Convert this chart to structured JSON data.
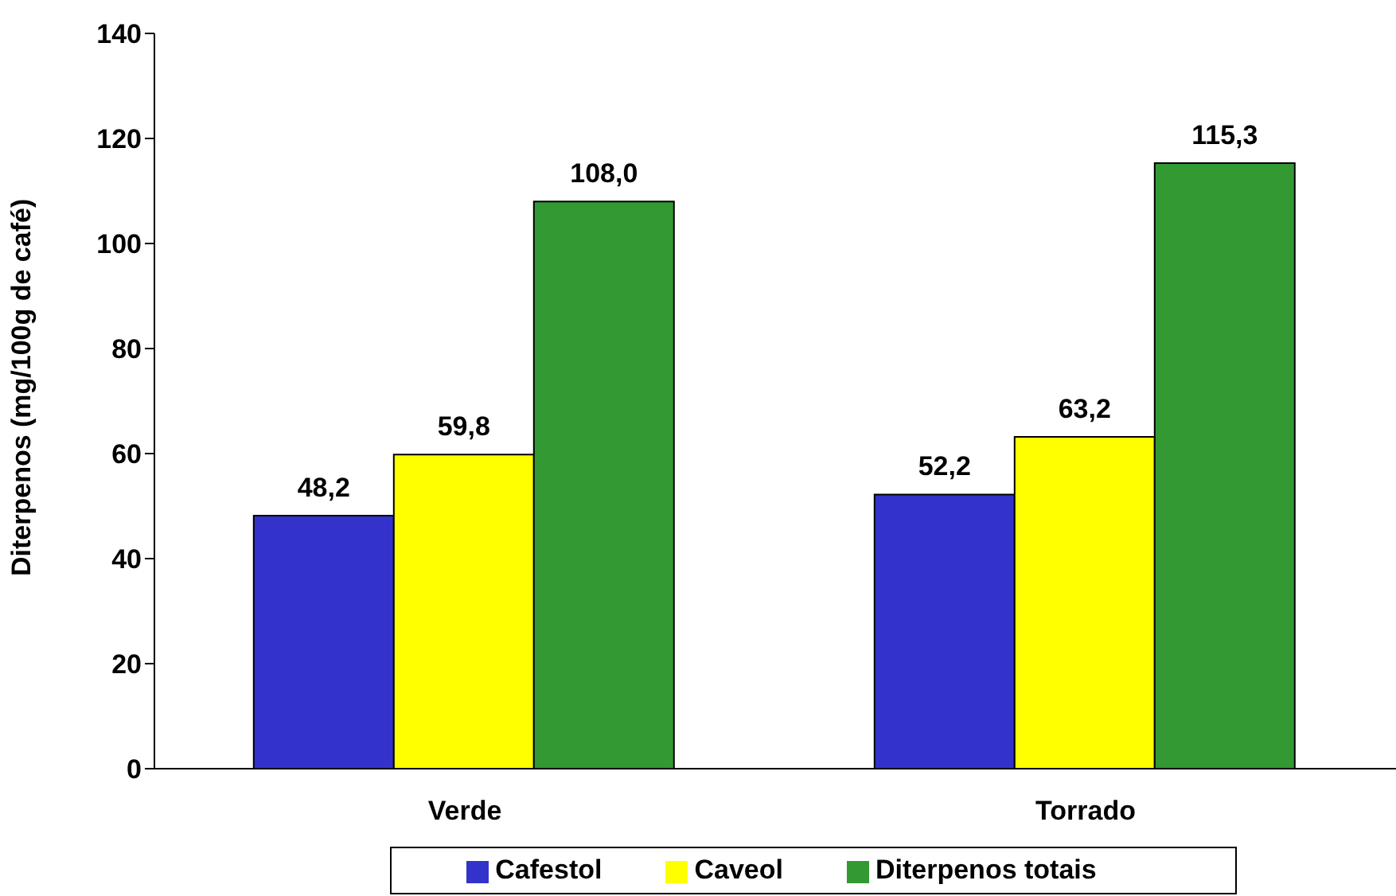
{
  "chart_data": {
    "type": "bar",
    "ylabel": "Diterpenos (mg/100g de café)",
    "categories": [
      "Verde",
      "Torrado"
    ],
    "series": [
      {
        "name": "Cafestol",
        "color": "#3333cc",
        "values": [
          48.2,
          52.2
        ],
        "value_labels": [
          "48,2",
          "52,2"
        ]
      },
      {
        "name": "Caveol",
        "color": "#ffff00",
        "values": [
          59.8,
          63.2
        ],
        "value_labels": [
          "59,8",
          "63,2"
        ]
      },
      {
        "name": "Diterpenos totais",
        "color": "#339933",
        "values": [
          108.0,
          115.3
        ],
        "value_labels": [
          "108,0",
          "115,3"
        ]
      }
    ],
    "ylim": [
      0,
      140
    ],
    "yticks": [
      0,
      20,
      40,
      60,
      80,
      100,
      120,
      140
    ],
    "grid": false,
    "legend": "bottom"
  }
}
